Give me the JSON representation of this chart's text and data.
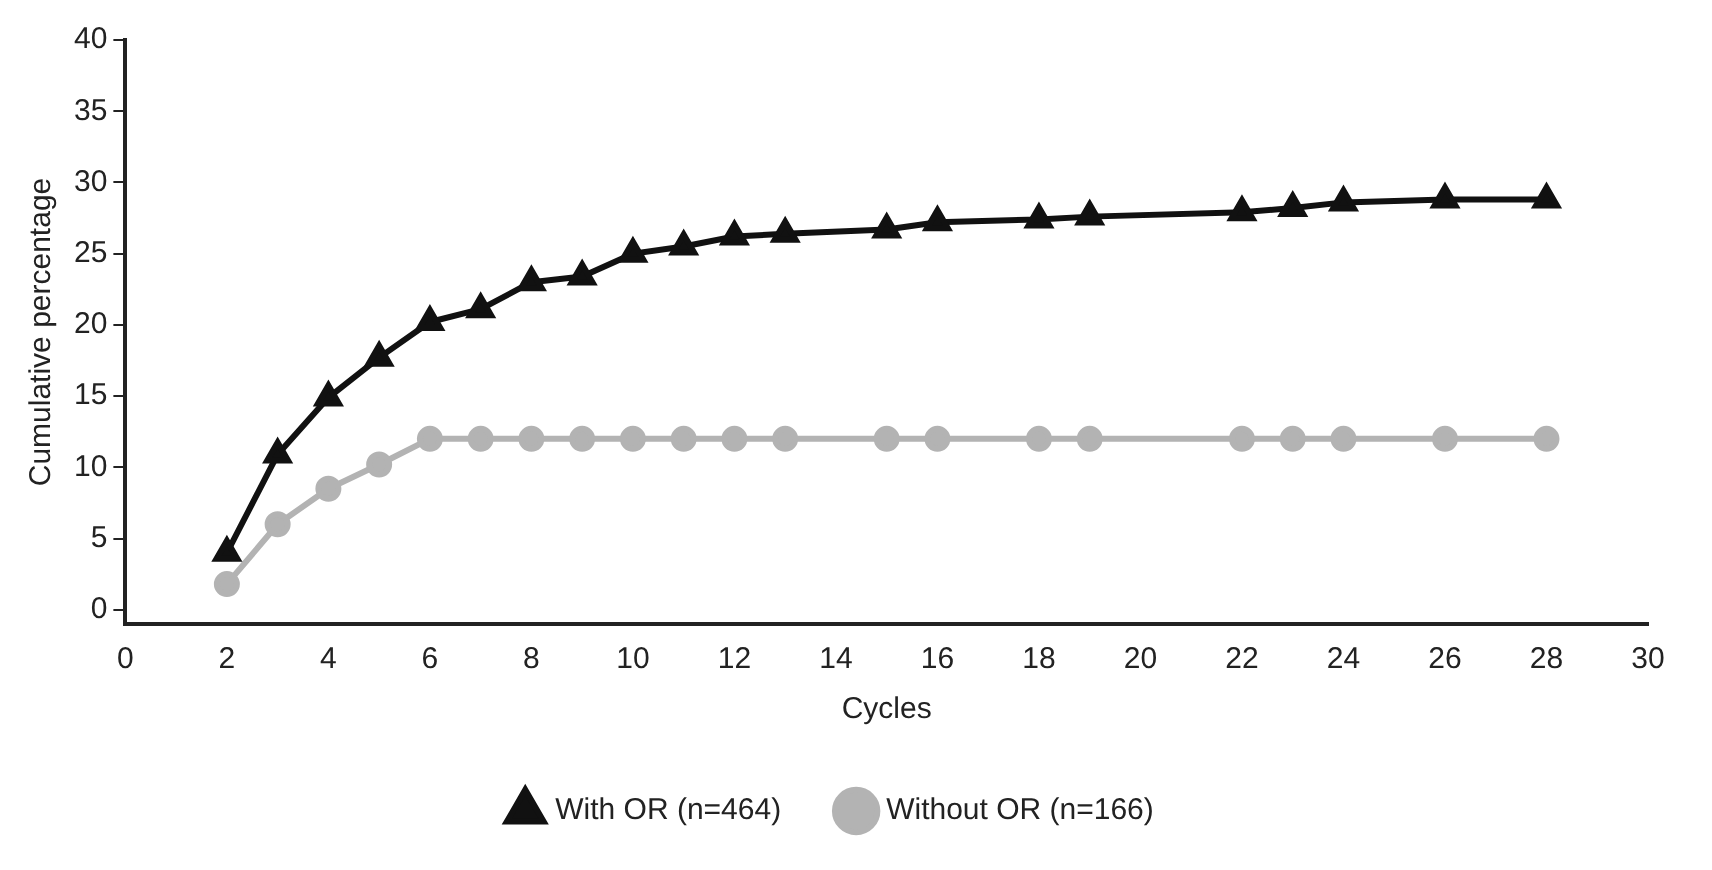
{
  "chart_data": {
    "type": "line",
    "xlabel": "Cycles",
    "ylabel": "Cumulative percentage",
    "x": [
      2,
      3,
      4,
      5,
      6,
      7,
      8,
      9,
      10,
      11,
      12,
      13,
      15,
      16,
      18,
      19,
      22,
      23,
      24,
      26,
      28
    ],
    "series": [
      {
        "name": "With OR (n=464)",
        "color": "#111111",
        "marker": "triangle",
        "values": [
          4,
          10.9,
          14.9,
          17.7,
          20.2,
          21.1,
          23,
          23.4,
          25,
          25.5,
          26.2,
          26.4,
          26.7,
          27.2,
          27.4,
          27.6,
          27.9,
          28.2,
          28.6,
          28.8,
          28.8
        ]
      },
      {
        "name": "Without OR (n=166)",
        "color": "#b3b3b3",
        "marker": "circle",
        "values": [
          1.8,
          6,
          8.5,
          10.2,
          12,
          12,
          12,
          12,
          12,
          12,
          12,
          12,
          12,
          12,
          12,
          12,
          12,
          12,
          12,
          12,
          12
        ]
      }
    ],
    "xlim": [
      0,
      30
    ],
    "xticks": [
      0,
      2,
      4,
      6,
      8,
      10,
      12,
      14,
      16,
      18,
      20,
      22,
      24,
      26,
      28,
      30
    ],
    "ylim": [
      -1,
      40
    ],
    "yticks": [
      0,
      5,
      10,
      15,
      20,
      25,
      30,
      35,
      40
    ],
    "grid": false,
    "legend": "bottom"
  }
}
